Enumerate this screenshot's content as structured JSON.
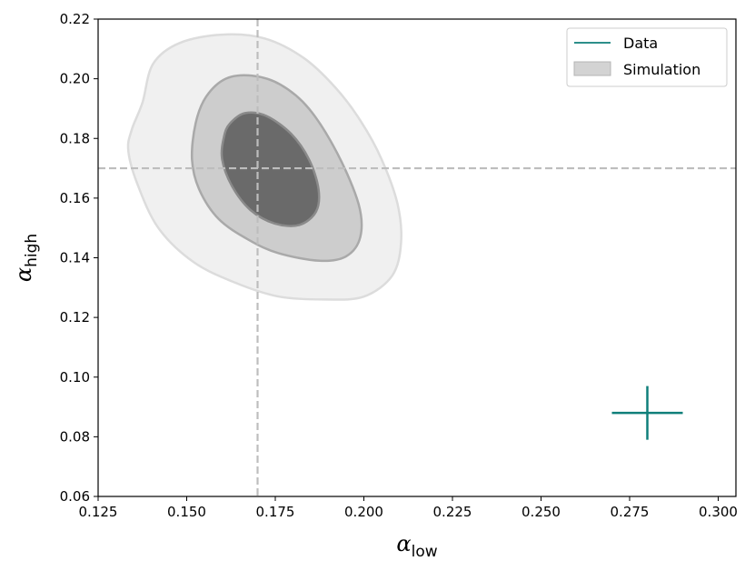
{
  "colors": {
    "data": "#0f7f7a",
    "contour_outer": "#f0f0f0",
    "contour_outer_edge": "#dcdcdc",
    "contour_mid": "#cdcdcd",
    "contour_mid_edge": "#a9a9a9",
    "contour_inner": "#6a6a6a",
    "contour_inner_edge": "#8a8a8a",
    "reference_line": "#bdbdbd",
    "legend_patch": "#d3d3d3"
  },
  "chart_data": {
    "type": "scatter",
    "title": "",
    "xlabel": {
      "symbol": "α",
      "subscript": "low"
    },
    "ylabel": {
      "symbol": "α",
      "subscript": "high"
    },
    "xlim": [
      0.125,
      0.305
    ],
    "ylim": [
      0.06,
      0.22
    ],
    "xticks": [
      0.125,
      0.15,
      0.175,
      0.2,
      0.225,
      0.25,
      0.275,
      0.3
    ],
    "xtick_labels": [
      "0.125",
      "0.150",
      "0.175",
      "0.200",
      "0.225",
      "0.250",
      "0.275",
      "0.300"
    ],
    "yticks": [
      0.06,
      0.08,
      0.1,
      0.12,
      0.14,
      0.16,
      0.18,
      0.2,
      0.22
    ],
    "ytick_labels": [
      "0.06",
      "0.08",
      "0.10",
      "0.12",
      "0.14",
      "0.16",
      "0.18",
      "0.20",
      "0.22"
    ],
    "grid": false,
    "legend_position": "top-right",
    "legend": [
      {
        "label": "Data",
        "kind": "line"
      },
      {
        "label": "Simulation",
        "kind": "patch"
      }
    ],
    "reference_lines": {
      "x": 0.17,
      "y": 0.17
    },
    "series": [
      {
        "name": "Data",
        "kind": "errorbar",
        "x": 0.28,
        "y": 0.088,
        "x_err": 0.01,
        "y_err": 0.009
      },
      {
        "name": "Simulation",
        "kind": "contours",
        "levels": [
          {
            "level": "outer",
            "points": [
              [
                0.1375,
                0.192
              ],
              [
                0.1405,
                0.205
              ],
              [
                0.148,
                0.212
              ],
              [
                0.16,
                0.2148
              ],
              [
                0.172,
                0.2135
              ],
              [
                0.183,
                0.207
              ],
              [
                0.192,
                0.197
              ],
              [
                0.199,
                0.186
              ],
              [
                0.205,
                0.173
              ],
              [
                0.2095,
                0.158
              ],
              [
                0.2105,
                0.145
              ],
              [
                0.208,
                0.134
              ],
              [
                0.2,
                0.127
              ],
              [
                0.189,
                0.126
              ],
              [
                0.176,
                0.127
              ],
              [
                0.164,
                0.1315
              ],
              [
                0.152,
                0.1385
              ],
              [
                0.142,
                0.15
              ],
              [
                0.136,
                0.165
              ],
              [
                0.1335,
                0.176
              ],
              [
                0.1345,
                0.183
              ]
            ]
          },
          {
            "level": "middle",
            "points": [
              [
                0.1555,
                0.194
              ],
              [
                0.161,
                0.2
              ],
              [
                0.1685,
                0.201
              ],
              [
                0.1765,
                0.198
              ],
              [
                0.1845,
                0.19
              ],
              [
                0.1925,
                0.175
              ],
              [
                0.1985,
                0.158
              ],
              [
                0.199,
                0.147
              ],
              [
                0.195,
                0.1405
              ],
              [
                0.1875,
                0.139
              ],
              [
                0.176,
                0.1415
              ],
              [
                0.1675,
                0.146
              ],
              [
                0.159,
                0.153
              ],
              [
                0.1535,
                0.163
              ],
              [
                0.1515,
                0.173
              ],
              [
                0.1525,
                0.185
              ]
            ]
          },
          {
            "level": "inner",
            "points": [
              [
                0.1622,
                0.185
              ],
              [
                0.1665,
                0.1885
              ],
              [
                0.1725,
                0.1875
              ],
              [
                0.1795,
                0.1815
              ],
              [
                0.1845,
                0.173
              ],
              [
                0.1872,
                0.163
              ],
              [
                0.1865,
                0.1555
              ],
              [
                0.1818,
                0.151
              ],
              [
                0.1748,
                0.1515
              ],
              [
                0.168,
                0.156
              ],
              [
                0.1628,
                0.164
              ],
              [
                0.16,
                0.173
              ],
              [
                0.1605,
                0.1805
              ]
            ]
          }
        ]
      }
    ]
  }
}
